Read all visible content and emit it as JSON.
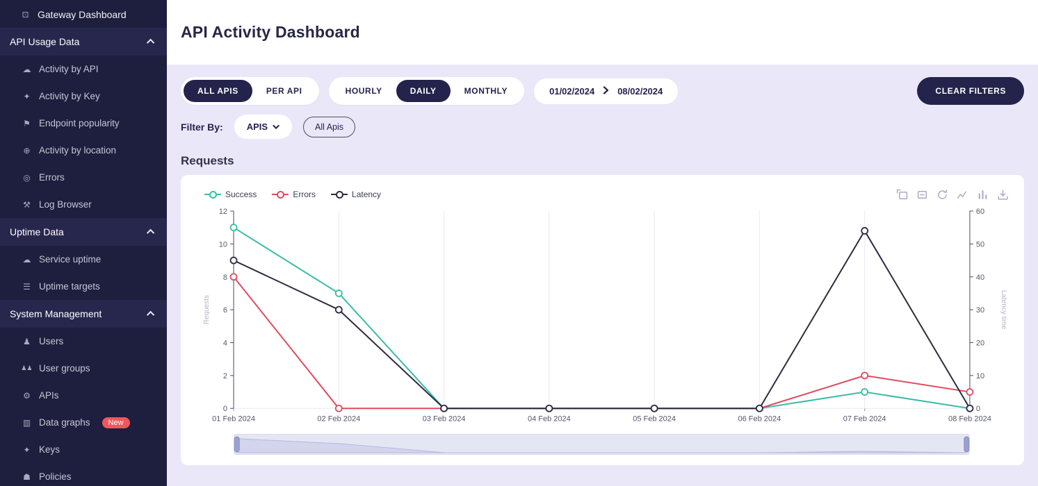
{
  "colors": {
    "accent_dark": "#23234c",
    "sidebar_bg": "#1e1e3e",
    "panel_bg": "#eae7f8",
    "badge_red": "#f2555c",
    "success_teal": "#3bbca4",
    "error_red": "#e04a5e",
    "latency_dark": "#2c2c3f"
  },
  "icons": {
    "monitor": "⊡",
    "cloud": "☁",
    "key": "✦",
    "flag": "⚑",
    "globe": "⊕",
    "target": "◎",
    "tools": "⚒",
    "list": "☰",
    "user": "♟",
    "users": "♟♟",
    "gear": "⚙",
    "chart": "▥",
    "shield": "☗"
  },
  "sidebar": {
    "top_item": {
      "label": "Gateway Dashboard"
    },
    "sections": [
      {
        "label": "API Usage Data",
        "items": [
          {
            "label": "Activity by API"
          },
          {
            "label": "Activity by Key"
          },
          {
            "label": "Endpoint popularity"
          },
          {
            "label": "Activity by location"
          },
          {
            "label": "Errors"
          },
          {
            "label": "Log Browser"
          }
        ]
      },
      {
        "label": "Uptime Data",
        "items": [
          {
            "label": "Service uptime"
          },
          {
            "label": "Uptime targets"
          }
        ]
      },
      {
        "label": "System Management",
        "items": [
          {
            "label": "Users"
          },
          {
            "label": "User groups"
          },
          {
            "label": "APIs"
          },
          {
            "label": "Data graphs",
            "badge": "New"
          },
          {
            "label": "Keys"
          },
          {
            "label": "Policies"
          }
        ]
      }
    ]
  },
  "header": {
    "title": "API Activity Dashboard"
  },
  "filters": {
    "api_scope": [
      "ALL APIS",
      "PER API"
    ],
    "api_scope_active": "ALL APIS",
    "granularity": [
      "HOURLY",
      "DAILY",
      "MONTHLY"
    ],
    "granularity_active": "DAILY",
    "date_from": "01/02/2024",
    "date_to": "08/02/2024",
    "clear_label": "CLEAR FILTERS",
    "filter_by_label": "Filter By:",
    "filter_dropdown": "APIS",
    "filter_pill": "All Apis"
  },
  "section_title": "Requests",
  "toolbox_icons": [
    "zoom-select",
    "zoom-reset",
    "restore",
    "line-chart",
    "bar-chart",
    "download"
  ],
  "chart_data": {
    "type": "line",
    "title": "Requests",
    "x": [
      "01 Feb 2024",
      "02 Feb 2024",
      "03 Feb 2024",
      "04 Feb 2024",
      "05 Feb 2024",
      "06 Feb 2024",
      "07 Feb 2024",
      "08 Feb 2024"
    ],
    "series": [
      {
        "name": "Success",
        "color": "#3bbca4",
        "axis": "left",
        "values": [
          11,
          7,
          0,
          0,
          0,
          0,
          1,
          0
        ]
      },
      {
        "name": "Errors",
        "color": "#e04a5e",
        "axis": "left",
        "values": [
          8,
          0,
          0,
          0,
          0,
          0,
          2,
          1
        ]
      },
      {
        "name": "Latency",
        "color": "#2c2c3f",
        "axis": "right",
        "values": [
          45,
          30,
          0,
          0,
          0,
          0,
          54,
          0
        ]
      }
    ],
    "left_axis": {
      "min": 0,
      "max": 12,
      "ticks": [
        0,
        2,
        4,
        6,
        8,
        10,
        12
      ],
      "label": "Requests"
    },
    "right_axis": {
      "min": 0,
      "max": 60,
      "ticks": [
        0,
        10,
        20,
        30,
        40,
        50,
        60
      ],
      "label": "Latency time"
    },
    "grid": "vertical",
    "legend_position": "top-left",
    "datazoom": {
      "start": "01 Feb 2024",
      "end": "08 Feb 2024"
    }
  }
}
